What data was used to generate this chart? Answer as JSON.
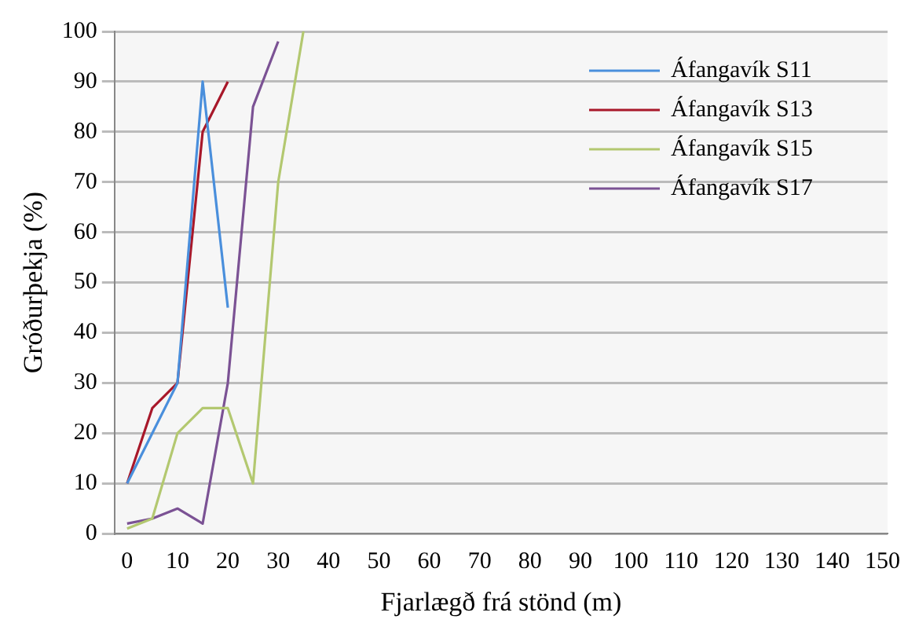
{
  "chart_data": {
    "type": "line",
    "xlabel": "Fjarlægð frá stönd (m)",
    "ylabel": "Gróðurþekja (%)",
    "xlim": [
      -2.5,
      151
    ],
    "xticks": [
      0,
      10,
      20,
      30,
      40,
      50,
      60,
      70,
      80,
      90,
      100,
      110,
      120,
      130,
      140,
      150
    ],
    "ylim": [
      0,
      100
    ],
    "yticks": [
      0,
      10,
      20,
      30,
      40,
      50,
      60,
      70,
      80,
      90,
      100
    ],
    "grid": "y",
    "legend": "top right",
    "marker": "none",
    "line_style": "solid",
    "series": [
      {
        "name": "Áfangavík S11",
        "color": "#4a8fdc",
        "x": [
          0,
          10,
          15,
          20
        ],
        "values": [
          10,
          30,
          90,
          45
        ]
      },
      {
        "name": "Áfangavík S13",
        "color": "#a8182a",
        "x": [
          0,
          5,
          10,
          15,
          20
        ],
        "values": [
          10,
          25,
          30,
          80,
          90
        ]
      },
      {
        "name": "Áfangavík S15",
        "color": "#b3c870",
        "x": [
          0,
          5,
          10,
          15,
          20,
          25,
          30,
          35
        ],
        "values": [
          1,
          3,
          20,
          25,
          25,
          10,
          70,
          100
        ]
      },
      {
        "name": "Áfangavík S17",
        "color": "#7b5294",
        "x": [
          0,
          5,
          10,
          15,
          20,
          25,
          30
        ],
        "values": [
          2,
          3,
          5,
          2,
          30,
          85,
          98
        ]
      }
    ]
  }
}
